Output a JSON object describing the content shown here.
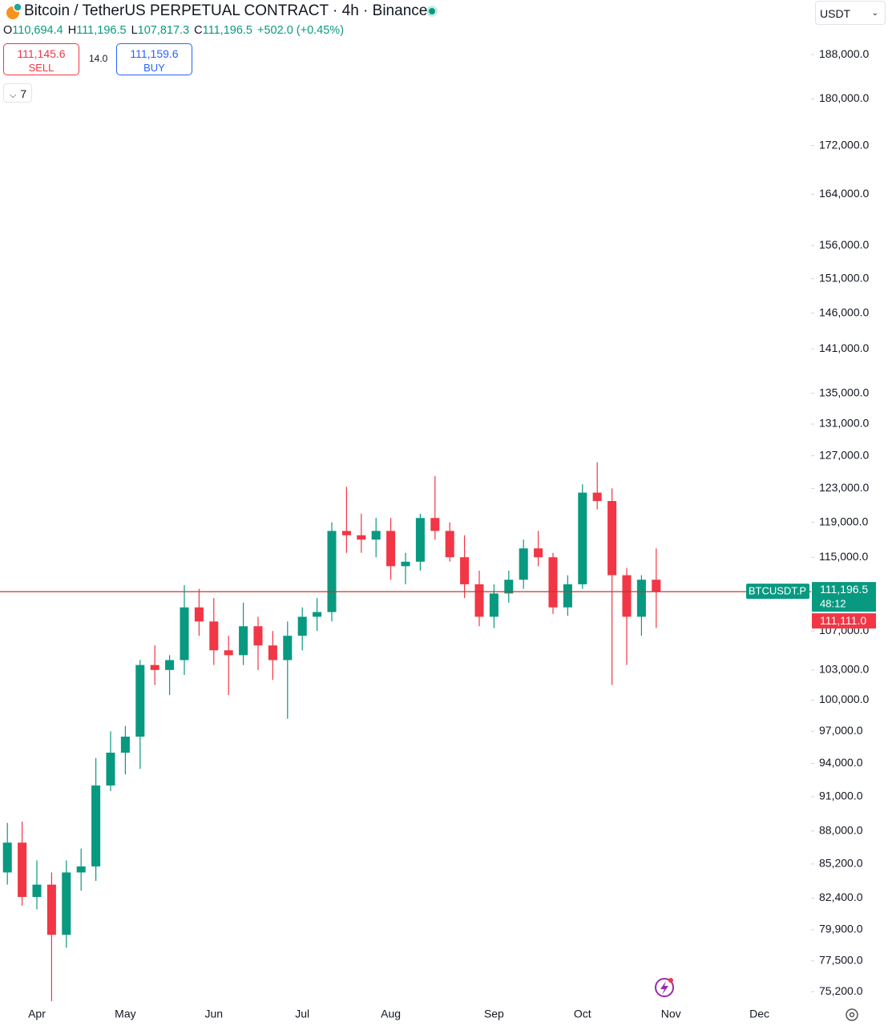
{
  "toolbar": {
    "title": "Bitcoin / TetherUS PERPETUAL CONTRACT · 4h · Binance",
    "ohlc": [
      {
        "key": "O",
        "value": "110,694.4"
      },
      {
        "key": "H",
        "value": "111,196.5"
      },
      {
        "key": "L",
        "value": "107,817.3"
      },
      {
        "key": "C",
        "value": "111,196.5"
      }
    ],
    "change": "+502.0 (+0.45%)",
    "sell_price": "111,145.6",
    "sell_label": "SELL",
    "spread": "14.0",
    "buy_price": "111,159.6",
    "buy_label": "BUY",
    "indicators_count": "7",
    "currency": "USDT"
  },
  "chart_data": {
    "type": "candlestick",
    "log_scale": true,
    "up_color": "#089981",
    "down_color": "#f23645",
    "categories": [
      null,
      null,
      "Apr",
      null,
      null,
      null,
      null,
      null,
      "May",
      null,
      null,
      null,
      null,
      null,
      "Jun",
      null,
      null,
      null,
      null,
      null,
      "Jul",
      null,
      null,
      null,
      null,
      null,
      "Aug",
      null,
      null,
      null,
      null,
      null,
      null,
      "Sep",
      null,
      null,
      null,
      null,
      null,
      "Oct",
      null,
      null,
      null,
      null,
      null,
      "Nov",
      null,
      null,
      null,
      null,
      null,
      "Dec",
      null,
      null,
      null
    ],
    "open": [
      84500,
      87000,
      82500,
      83500,
      79500,
      84500,
      85000,
      92000,
      95000,
      96500,
      103500,
      103000,
      104000,
      109500,
      108000,
      105000,
      104500,
      107500,
      105500,
      104000,
      106500,
      108500,
      109000,
      118000,
      117500,
      117000,
      118000,
      114000,
      114500,
      119500,
      118000,
      115000,
      112000,
      108500,
      111000,
      112500,
      116000,
      115000,
      109500,
      112000,
      122500,
      121500,
      113000,
      108500,
      112500,
      null,
      null,
      null,
      null,
      null,
      null,
      null,
      null,
      null,
      null
    ],
    "high": [
      88700,
      88800,
      85500,
      84500,
      85500,
      86500,
      94500,
      97000,
      97500,
      104000,
      105500,
      104500,
      111900,
      111500,
      110500,
      106500,
      110000,
      108500,
      107000,
      108000,
      109500,
      110500,
      119000,
      123200,
      120000,
      119500,
      119500,
      115500,
      120000,
      124500,
      119000,
      117500,
      113500,
      112000,
      113500,
      117000,
      118000,
      115500,
      113000,
      123500,
      126200,
      123000,
      113800,
      113000,
      116000,
      null,
      null,
      null,
      null,
      null,
      null,
      null,
      null,
      null,
      null
    ],
    "low": [
      83500,
      81800,
      81500,
      74500,
      78500,
      83000,
      83800,
      91500,
      93000,
      93500,
      101500,
      100500,
      102500,
      106500,
      103500,
      100500,
      103500,
      103000,
      102000,
      98200,
      105000,
      107000,
      108000,
      115500,
      115500,
      115000,
      112500,
      112000,
      113500,
      117000,
      114500,
      110500,
      107500,
      107300,
      110000,
      111500,
      114000,
      108800,
      108600,
      111500,
      120500,
      101500,
      103500,
      106500,
      107300,
      null,
      null,
      null,
      null,
      null,
      null,
      null,
      null,
      null,
      null
    ],
    "close": [
      87000,
      82500,
      83500,
      79500,
      84500,
      85000,
      92000,
      95000,
      96500,
      103500,
      103000,
      104000,
      109500,
      108000,
      105000,
      104500,
      107500,
      105500,
      104000,
      106500,
      108500,
      109000,
      118000,
      117500,
      117000,
      118000,
      114000,
      114500,
      119500,
      118000,
      115000,
      112000,
      108500,
      111000,
      112500,
      116000,
      115000,
      109500,
      112000,
      122500,
      121500,
      113000,
      108500,
      112500,
      111196.5,
      null,
      null,
      null,
      null,
      null,
      null,
      null,
      null,
      null,
      null
    ],
    "ylim": [
      74450,
      198300
    ],
    "yticks": [
      {
        "value": 188000,
        "label": "188,000.0"
      },
      {
        "value": 180000,
        "label": "180,000.0"
      },
      {
        "value": 172000,
        "label": "172,000.0"
      },
      {
        "value": 164000,
        "label": "164,000.0"
      },
      {
        "value": 156000,
        "label": "156,000.0"
      },
      {
        "value": 151000,
        "label": "151,000.0"
      },
      {
        "value": 146000,
        "label": "146,000.0"
      },
      {
        "value": 141000,
        "label": "141,000.0"
      },
      {
        "value": 135000,
        "label": "135,000.0"
      },
      {
        "value": 131000,
        "label": "131,000.0"
      },
      {
        "value": 127000,
        "label": "127,000.0"
      },
      {
        "value": 123000,
        "label": "123,000.0"
      },
      {
        "value": 119000,
        "label": "119,000.0"
      },
      {
        "value": 115000,
        "label": "115,000.0"
      },
      {
        "value": 107000,
        "label": "107,000.0"
      },
      {
        "value": 103000,
        "label": "103,000.0"
      },
      {
        "value": 100000,
        "label": "100,000.0"
      },
      {
        "value": 97000,
        "label": "97,000.0"
      },
      {
        "value": 94000,
        "label": "94,000.0"
      },
      {
        "value": 91000,
        "label": "91,000.0"
      },
      {
        "value": 88000,
        "label": "88,000.0"
      },
      {
        "value": 85200,
        "label": "85,200.0"
      },
      {
        "value": 82400,
        "label": "82,400.0"
      },
      {
        "value": 79900,
        "label": "79,900.0"
      },
      {
        "value": 77500,
        "label": "77,500.0"
      },
      {
        "value": 75200,
        "label": "75,200.0"
      }
    ],
    "symbol_tag": "BTCUSDT.P",
    "last_price": {
      "value": 111196.5,
      "label": "111,196.5"
    },
    "countdown": "48:12",
    "bid_price": {
      "value": 111111,
      "label": "111,111.0"
    }
  }
}
